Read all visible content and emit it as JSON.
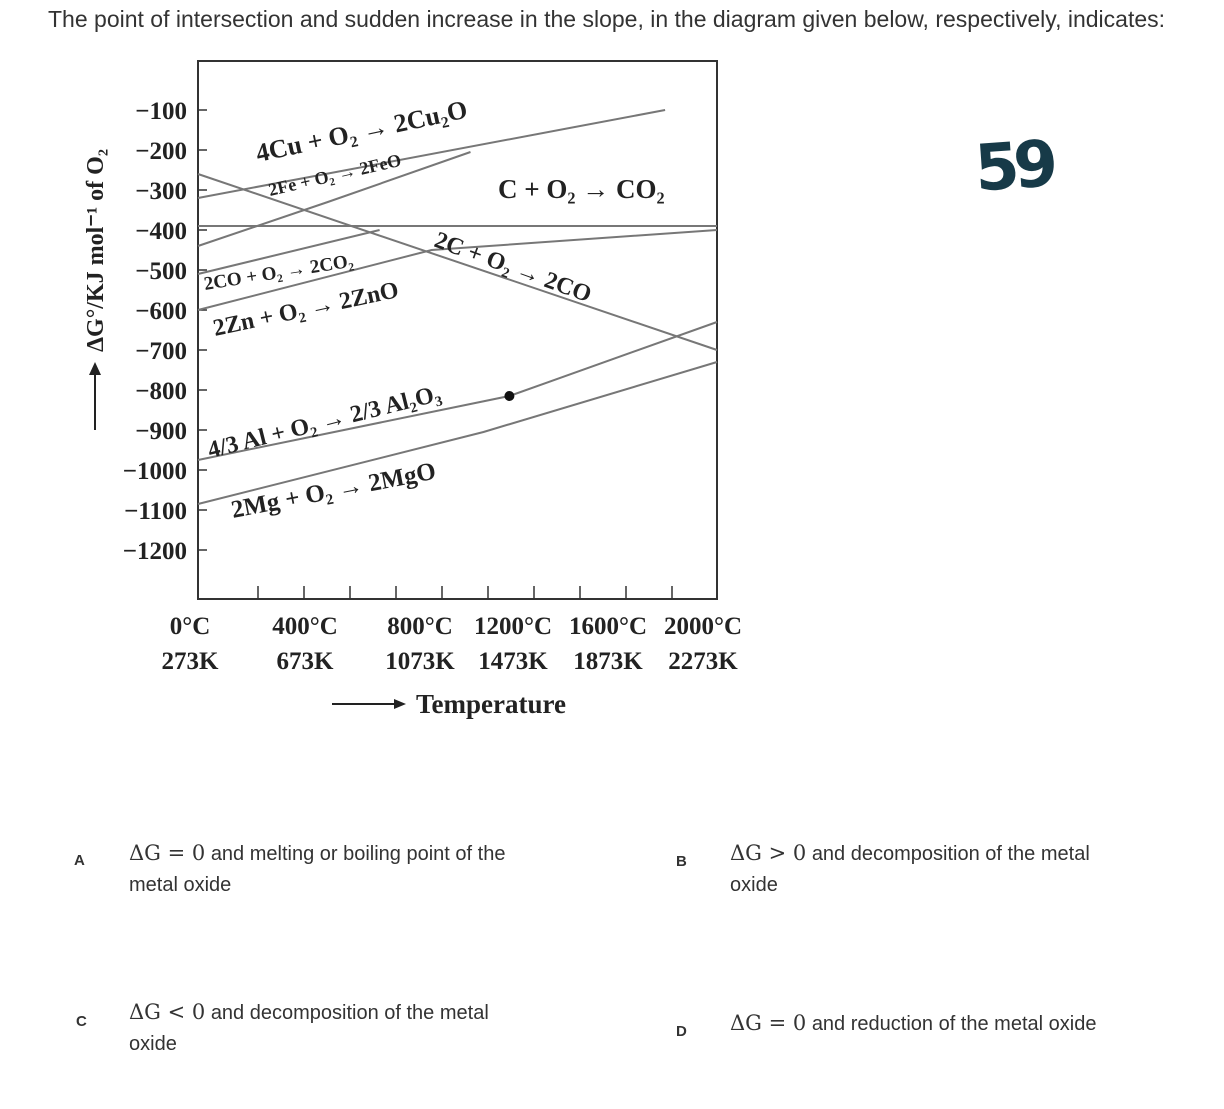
{
  "question": "The point of intersection and sudden increase in the slope, in the diagram given below, respectively, indicates:",
  "handwritten_mark": "59",
  "chart_data": {
    "type": "line",
    "title": "",
    "ylabel": "ΔG°/KJ mol⁻¹ of O₂",
    "xlabel": "Temperature",
    "y_ticks": [
      -100,
      -200,
      -300,
      -400,
      -500,
      -600,
      -700,
      -800,
      -900,
      -1000,
      -1100,
      -1200
    ],
    "x_ticks_celsius": [
      "0°C",
      "400°C",
      "800°C",
      "1200°C",
      "1600°C",
      "2000°C"
    ],
    "x_ticks_kelvin": [
      "273K",
      "673K",
      "1073K",
      "1473K",
      "1873K",
      "2273K"
    ],
    "ylim": [
      -1200,
      -100
    ],
    "xlim_celsius": [
      0,
      2000
    ],
    "series": [
      {
        "name": "4Cu + O₂ → 2Cu₂O",
        "points": [
          [
            0,
            -320
          ],
          [
            1800,
            -100
          ]
        ]
      },
      {
        "name": "2Fe + O₂ → 2FeO",
        "points": [
          [
            0,
            -440
          ],
          [
            500,
            -330
          ],
          [
            1050,
            -205
          ]
        ]
      },
      {
        "name": "C + O₂ → CO₂",
        "points": [
          [
            0,
            -390
          ],
          [
            2000,
            -390
          ]
        ]
      },
      {
        "name": "2C + O₂ → 2CO",
        "points": [
          [
            0,
            -260
          ],
          [
            2000,
            -700
          ]
        ]
      },
      {
        "name": "2CO + O₂ → 2CO₂",
        "points": [
          [
            0,
            -510
          ],
          [
            700,
            -400
          ]
        ]
      },
      {
        "name": "2Zn + O₂ → 2ZnO",
        "points": [
          [
            0,
            -600
          ],
          [
            900,
            -450
          ],
          [
            2000,
            -400
          ]
        ]
      },
      {
        "name": "4/3 Al + O₂ → 2/3 Al₂O₃",
        "points": [
          [
            0,
            -975
          ],
          [
            1200,
            -815
          ],
          [
            2000,
            -630
          ]
        ]
      },
      {
        "name": "2Mg + O₂ → 2MgO",
        "points": [
          [
            0,
            -1085
          ],
          [
            1100,
            -905
          ],
          [
            2000,
            -730
          ]
        ]
      }
    ],
    "marked_point": {
      "x_celsius": 1200,
      "y": -815
    }
  },
  "options": [
    {
      "letter": "A",
      "prefix": "ΔG = 0",
      "text": "and melting or boiling point of the",
      "text2": "metal oxide"
    },
    {
      "letter": "B",
      "prefix": "ΔG > 0",
      "text": "and decomposition of the metal",
      "text2": "oxide"
    },
    {
      "letter": "C",
      "prefix": "ΔG < 0",
      "text": "and decomposition of the metal",
      "text2": "oxide"
    },
    {
      "letter": "D",
      "prefix": "ΔG = 0",
      "text": "and reduction of the metal oxide",
      "text2": ""
    }
  ]
}
